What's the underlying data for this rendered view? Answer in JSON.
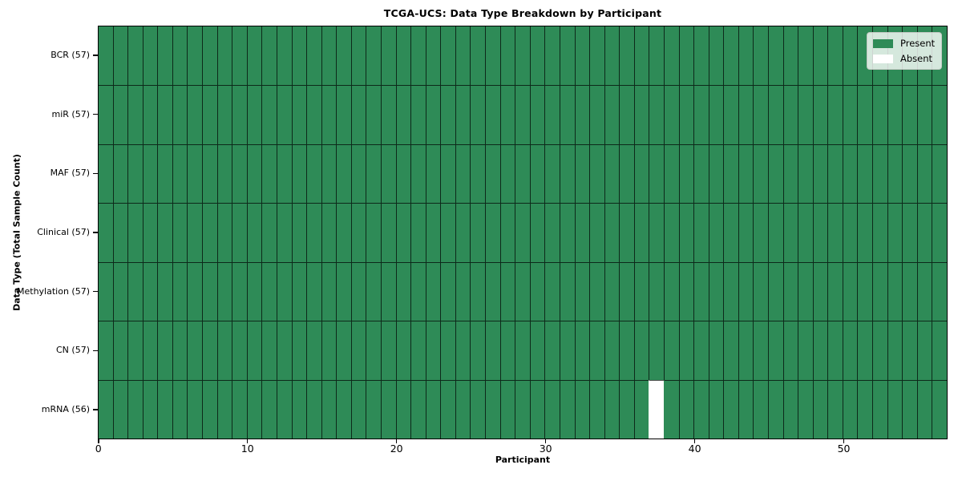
{
  "figure": {
    "title": "TCGA-UCS: Data Type Breakdown by Participant",
    "xlabel": "Participant",
    "ylabel": "Data Type (Total Sample Count)"
  },
  "legend": {
    "position": "upper right",
    "items": [
      {
        "label": "Present",
        "color": "#2E8B57"
      },
      {
        "label": "Absent",
        "color": "#FFFFFF"
      }
    ]
  },
  "chart_data": {
    "type": "heatmap",
    "title": "TCGA-UCS: Data Type Breakdown by Participant",
    "xlabel": "Participant",
    "ylabel": "Data Type (Total Sample Count)",
    "n_participants": 57,
    "x_ticks": [
      0,
      10,
      20,
      30,
      40,
      50
    ],
    "x_range": [
      0,
      57
    ],
    "grid": true,
    "rows": [
      {
        "label": "BCR (57)",
        "data_type": "BCR",
        "present_count": 57,
        "absent_participants": []
      },
      {
        "label": "miR (57)",
        "data_type": "miR",
        "present_count": 57,
        "absent_participants": []
      },
      {
        "label": "MAF (57)",
        "data_type": "MAF",
        "present_count": 57,
        "absent_participants": []
      },
      {
        "label": "Clinical (57)",
        "data_type": "Clinical",
        "present_count": 57,
        "absent_participants": []
      },
      {
        "label": "Methylation (57)",
        "data_type": "Methylation",
        "present_count": 57,
        "absent_participants": []
      },
      {
        "label": "CN (57)",
        "data_type": "CN",
        "present_count": 57,
        "absent_participants": []
      },
      {
        "label": "mRNA (56)",
        "data_type": "mRNA",
        "present_count": 56,
        "absent_participants": [
          37
        ]
      }
    ],
    "colors": {
      "present": "#2E8B57",
      "absent": "#FFFFFF",
      "grid_line": "rgba(0,0,0,0.7)",
      "axis": "#000000"
    },
    "legend_entries": [
      "Present",
      "Absent"
    ]
  }
}
